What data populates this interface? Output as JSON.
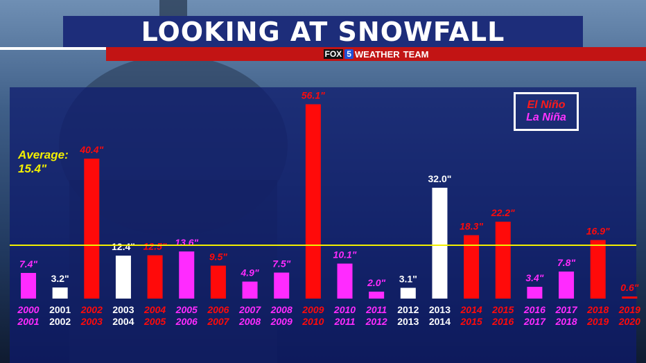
{
  "header": {
    "title": "LOOKING AT SNOWFALL",
    "logo_fox": "FOX",
    "logo_five": "5",
    "logo_weather": "WEATHER",
    "logo_team": "TEAM"
  },
  "legend": {
    "el_nino": "El Niño",
    "la_nina": "La Niña"
  },
  "average": {
    "label": "Average:",
    "value_label": "15.4\"",
    "value": 15.4
  },
  "colors": {
    "el_nino": "#ff0a0a",
    "la_nina": "#ff2bff",
    "neutral": "#ffffff",
    "average_line": "#f3f000",
    "panel": "#0e1a6e"
  },
  "chart_data": {
    "type": "bar",
    "title": "LOOKING AT SNOWFALL",
    "ylabel": "",
    "xlabel": "",
    "ylim": [
      0,
      60
    ],
    "grid": false,
    "legend_position": "top-right",
    "categories": [
      [
        "2000",
        "2001"
      ],
      [
        "2001",
        "2002"
      ],
      [
        "2002",
        "2003"
      ],
      [
        "2003",
        "2004"
      ],
      [
        "2004",
        "2005"
      ],
      [
        "2005",
        "2006"
      ],
      [
        "2006",
        "2007"
      ],
      [
        "2007",
        "2008"
      ],
      [
        "2008",
        "2009"
      ],
      [
        "2009",
        "2010"
      ],
      [
        "2010",
        "2011"
      ],
      [
        "2011",
        "2012"
      ],
      [
        "2012",
        "2013"
      ],
      [
        "2013",
        "2014"
      ],
      [
        "2014",
        "2015"
      ],
      [
        "2015",
        "2016"
      ],
      [
        "2016",
        "2017"
      ],
      [
        "2017",
        "2018"
      ],
      [
        "2018",
        "2019"
      ],
      [
        "2019",
        "2020"
      ]
    ],
    "values": [
      7.4,
      3.2,
      40.4,
      12.4,
      12.5,
      13.6,
      9.5,
      4.9,
      7.5,
      56.1,
      10.1,
      2.0,
      3.1,
      32.0,
      18.3,
      22.2,
      3.4,
      7.8,
      16.9,
      0.6
    ],
    "labels": [
      "7.4\"",
      "3.2\"",
      "40.4\"",
      "12.4\"",
      "12.5\"",
      "13.6\"",
      "9.5\"",
      "4.9\"",
      "7.5\"",
      "56.1\"",
      "10.1\"",
      "2.0\"",
      "3.1\"",
      "32.0\"",
      "18.3\"",
      "22.2\"",
      "3.4\"",
      "7.8\"",
      "16.9\"",
      "0.6\""
    ],
    "phase": [
      "la_nina",
      "neutral",
      "el_nino",
      "neutral",
      "el_nino",
      "la_nina",
      "el_nino",
      "la_nina",
      "la_nina",
      "el_nino",
      "la_nina",
      "la_nina",
      "neutral",
      "neutral",
      "el_nino",
      "el_nino",
      "la_nina",
      "la_nina",
      "el_nino",
      "el_nino"
    ],
    "average": 15.4
  }
}
